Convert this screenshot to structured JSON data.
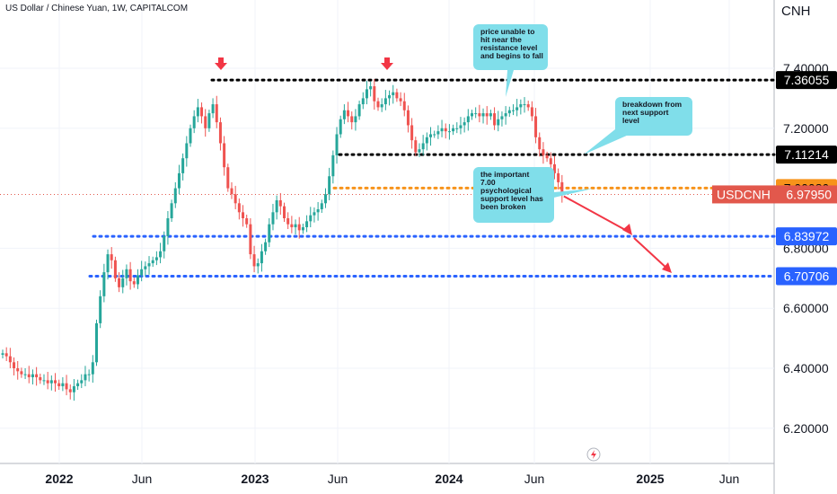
{
  "header": {
    "title": "US Dollar / Chinese Yuan, 1W, CAPITALCOM",
    "currency": "CNH"
  },
  "chart_data": {
    "type": "candlestick",
    "symbol": "USDCNH",
    "ylim": [
      6.08,
      7.48
    ],
    "y_ticks": [
      "7.40000",
      "7.20000",
      "6.80000",
      "6.60000",
      "6.40000",
      "6.20000"
    ],
    "x_ticks": [
      "2022",
      "Jun",
      "2023",
      "Jun",
      "2024",
      "Jun",
      "2025",
      "Jun"
    ],
    "levels": [
      {
        "label": "7.36055",
        "value": 7.36055,
        "color": "#000000",
        "text_color": "#ffffff",
        "line": "#000000"
      },
      {
        "label": "7.11214",
        "value": 7.11214,
        "color": "#000000",
        "text_color": "#ffffff",
        "line": "#000000"
      },
      {
        "label": "7.00080",
        "value": 7.0008,
        "color": "#f7931a",
        "text_color": "#000000",
        "line": "#f7931a"
      },
      {
        "label": "6.83972",
        "value": 6.83972,
        "color": "#2962ff",
        "text_color": "#ffffff",
        "line": "#2962ff"
      },
      {
        "label": "6.70706",
        "value": 6.70706,
        "color": "#2962ff",
        "text_color": "#ffffff",
        "line": "#2962ff"
      }
    ],
    "last_price": {
      "symbol": "USDCNH",
      "value": "6.97950",
      "price": 6.9795,
      "color": "#e2584c"
    },
    "annotations": [
      {
        "lines": [
          "price unable to",
          "hit near the",
          "resistance level",
          "and begins to fall"
        ]
      },
      {
        "lines": [
          "breakdown from",
          "next support",
          "level"
        ]
      },
      {
        "lines": [
          "the important",
          "7.00",
          "psychological",
          "support level has",
          "been broken"
        ]
      }
    ],
    "colors": {
      "up": "#26a69a",
      "down": "#ef5350",
      "callout": "#80deea",
      "arrow": "#f23645"
    },
    "weekly_closes": [
      6.45,
      6.44,
      6.42,
      6.4,
      6.39,
      6.38,
      6.38,
      6.37,
      6.38,
      6.37,
      6.36,
      6.36,
      6.35,
      6.36,
      6.35,
      6.34,
      6.35,
      6.33,
      6.32,
      6.34,
      6.35,
      6.36,
      6.38,
      6.38,
      6.42,
      6.55,
      6.64,
      6.72,
      6.78,
      6.76,
      6.7,
      6.67,
      6.7,
      6.73,
      6.69,
      6.68,
      6.71,
      6.73,
      6.74,
      6.75,
      6.76,
      6.77,
      6.79,
      6.84,
      6.9,
      6.95,
      7.0,
      7.05,
      7.1,
      7.15,
      7.2,
      7.24,
      7.27,
      7.24,
      7.2,
      7.25,
      7.28,
      7.22,
      7.15,
      7.07,
      7.0,
      6.98,
      6.95,
      6.92,
      6.9,
      6.88,
      6.78,
      6.74,
      6.75,
      6.79,
      6.82,
      6.88,
      6.92,
      6.96,
      6.94,
      6.9,
      6.88,
      6.87,
      6.88,
      6.86,
      6.87,
      6.89,
      6.91,
      6.92,
      6.93,
      6.95,
      6.98,
      7.04,
      7.11,
      7.18,
      7.23,
      7.26,
      7.24,
      7.22,
      7.24,
      7.28,
      7.3,
      7.33,
      7.34,
      7.29,
      7.27,
      7.28,
      7.3,
      7.31,
      7.32,
      7.3,
      7.29,
      7.26,
      7.21,
      7.16,
      7.12,
      7.13,
      7.15,
      7.17,
      7.18,
      7.18,
      7.19,
      7.2,
      7.19,
      7.19,
      7.2,
      7.2,
      7.21,
      7.22,
      7.24,
      7.25,
      7.25,
      7.24,
      7.25,
      7.24,
      7.25,
      7.21,
      7.23,
      7.24,
      7.25,
      7.26,
      7.26,
      7.27,
      7.28,
      7.28,
      7.27,
      7.24,
      7.17,
      7.13,
      7.11,
      7.1,
      7.08,
      7.05,
      7.02,
      6.98
    ]
  }
}
